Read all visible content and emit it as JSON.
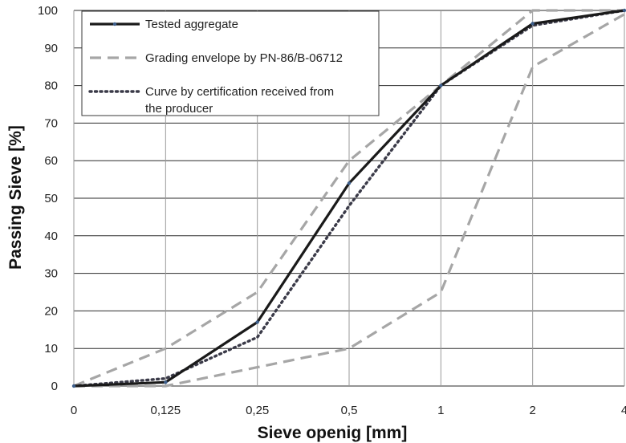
{
  "chart_data": {
    "type": "line",
    "xlabel": "Sieve openig [mm]",
    "ylabel": "Passing Sieve  [%]",
    "categories": [
      "0",
      "0,125",
      "0,25",
      "0,5",
      "1",
      "2",
      "4"
    ],
    "ylim": [
      0,
      100
    ],
    "yticks": [
      "0",
      "10",
      "20",
      "30",
      "40",
      "50",
      "60",
      "70",
      "80",
      "90",
      "100"
    ],
    "grid": true,
    "legend_placement": "top-left",
    "series": [
      {
        "name": "Tested aggregate",
        "style": "solid",
        "color": "#1a1a1a",
        "values": [
          0,
          1,
          17,
          54,
          80,
          96.5,
          100
        ]
      },
      {
        "name": "Grading envelope by PN-86/B-06712",
        "style": "dashed",
        "color": "#a6a6a6",
        "values": [
          0,
          10,
          25,
          60,
          80,
          100,
          100
        ]
      },
      {
        "name": "Grading envelope by PN-86/B-06712 (lower)",
        "style": "dashed",
        "color": "#a6a6a6",
        "in_legend": false,
        "values": [
          0,
          0,
          5,
          10,
          25,
          85,
          99
        ]
      },
      {
        "name": "Curve by certification received from the producer",
        "legend_lines": [
          "Curve by certification received from",
          "the producer"
        ],
        "style": "dotted",
        "color": "#3a3a48",
        "values": [
          0,
          2,
          13,
          48,
          80,
          96,
          100
        ]
      }
    ]
  }
}
